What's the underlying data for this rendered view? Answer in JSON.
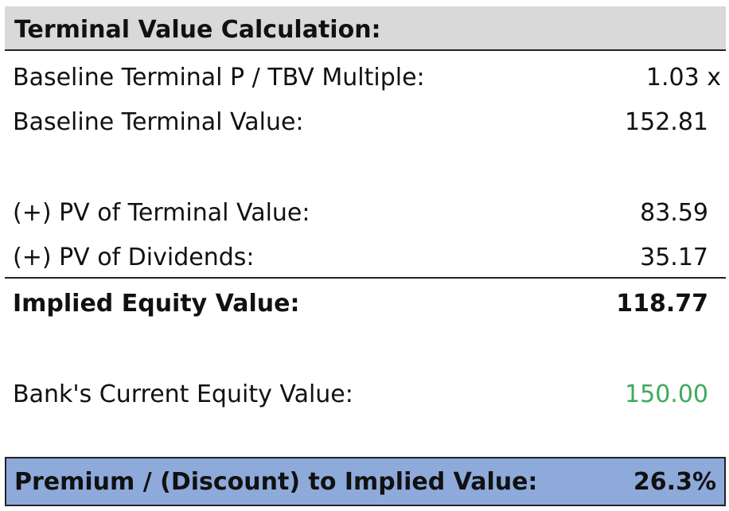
{
  "table": {
    "title": "Terminal Value Calculation:",
    "rows": [
      {
        "label": "Baseline Terminal P / TBV Multiple:",
        "value": "1.03 x"
      },
      {
        "label": "Baseline Terminal Value:",
        "value": "152.81"
      },
      {
        "label": "(+) PV of Terminal Value:",
        "value": "83.59"
      },
      {
        "label": "(+) PV of Dividends:",
        "value": "35.17"
      },
      {
        "label": "Implied Equity Value:",
        "value": "118.77"
      },
      {
        "label": "Bank's Current Equity Value:",
        "value": "150.00"
      }
    ],
    "result": {
      "label": "Premium / (Discount) to Implied Value:",
      "value": "26.3%"
    }
  },
  "colors": {
    "header_background": "#d9d9d9",
    "result_background": "#8eaadb",
    "current_value_text": "#3daa5c",
    "border": "#222222"
  }
}
